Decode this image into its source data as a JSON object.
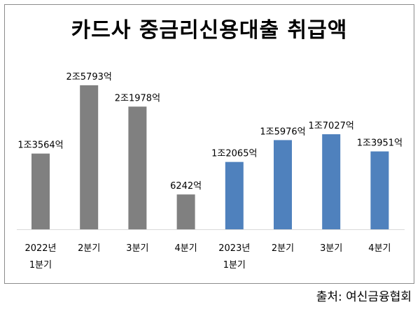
{
  "title": "카드사 중금리신용대출 취급액",
  "source": "출처: 여신금융협회",
  "chart_data": {
    "type": "bar",
    "title": "카드사 중금리신용대출 취급액",
    "categories": [
      [
        "2022년",
        "1분기"
      ],
      [
        "2분기"
      ],
      [
        "3분기"
      ],
      [
        "4분기"
      ],
      [
        "2023년",
        "1분기"
      ],
      [
        "2분기"
      ],
      [
        "3분기"
      ],
      [
        "4분기"
      ]
    ],
    "values": [
      13564,
      25793,
      21978,
      6242,
      12065,
      15976,
      17027,
      13951
    ],
    "value_labels": [
      "1조3564억",
      "2조5793억",
      "2조1978억",
      "6242억",
      "1조2065억",
      "1조5976억",
      "1조7027억",
      "1조3951억"
    ],
    "unit": "억",
    "colors": [
      "#808080",
      "#808080",
      "#808080",
      "#808080",
      "#4f81bd",
      "#4f81bd",
      "#4f81bd",
      "#4f81bd"
    ],
    "ylim": [
      0,
      28000
    ],
    "grid": false,
    "legend": "none"
  }
}
